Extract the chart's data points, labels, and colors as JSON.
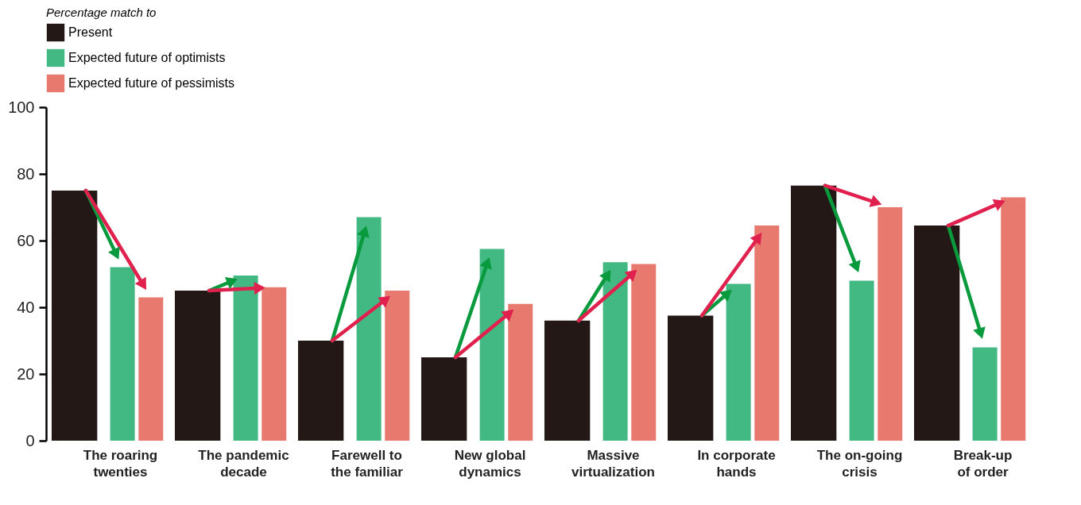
{
  "chart_data": {
    "type": "bar",
    "categories": [
      "The roaring twenties",
      "The pandemic decade",
      "Farewell to the familiar",
      "New global dynamics",
      "Massive virtualization",
      "In corporate hands",
      "The on-going crisis",
      "Break-up of order"
    ],
    "series": [
      {
        "name": "Present",
        "color": "#231815",
        "values": [
          75,
          45,
          30,
          25,
          36,
          37.5,
          76.5,
          64.5
        ]
      },
      {
        "name": "Expected future of optimists",
        "color": "#42b883",
        "values": [
          52,
          49.5,
          67,
          57.5,
          53.5,
          47,
          48,
          28
        ]
      },
      {
        "name": "Expected future of pessimists",
        "color": "#e8796f",
        "values": [
          43,
          46,
          45,
          41,
          53,
          64.5,
          70,
          73
        ]
      }
    ],
    "legend_title": "Percentage match to",
    "legend": "top",
    "ylim": [
      0,
      100
    ],
    "yticks": [
      0,
      20,
      40,
      60,
      80,
      100
    ],
    "grid": false
  }
}
